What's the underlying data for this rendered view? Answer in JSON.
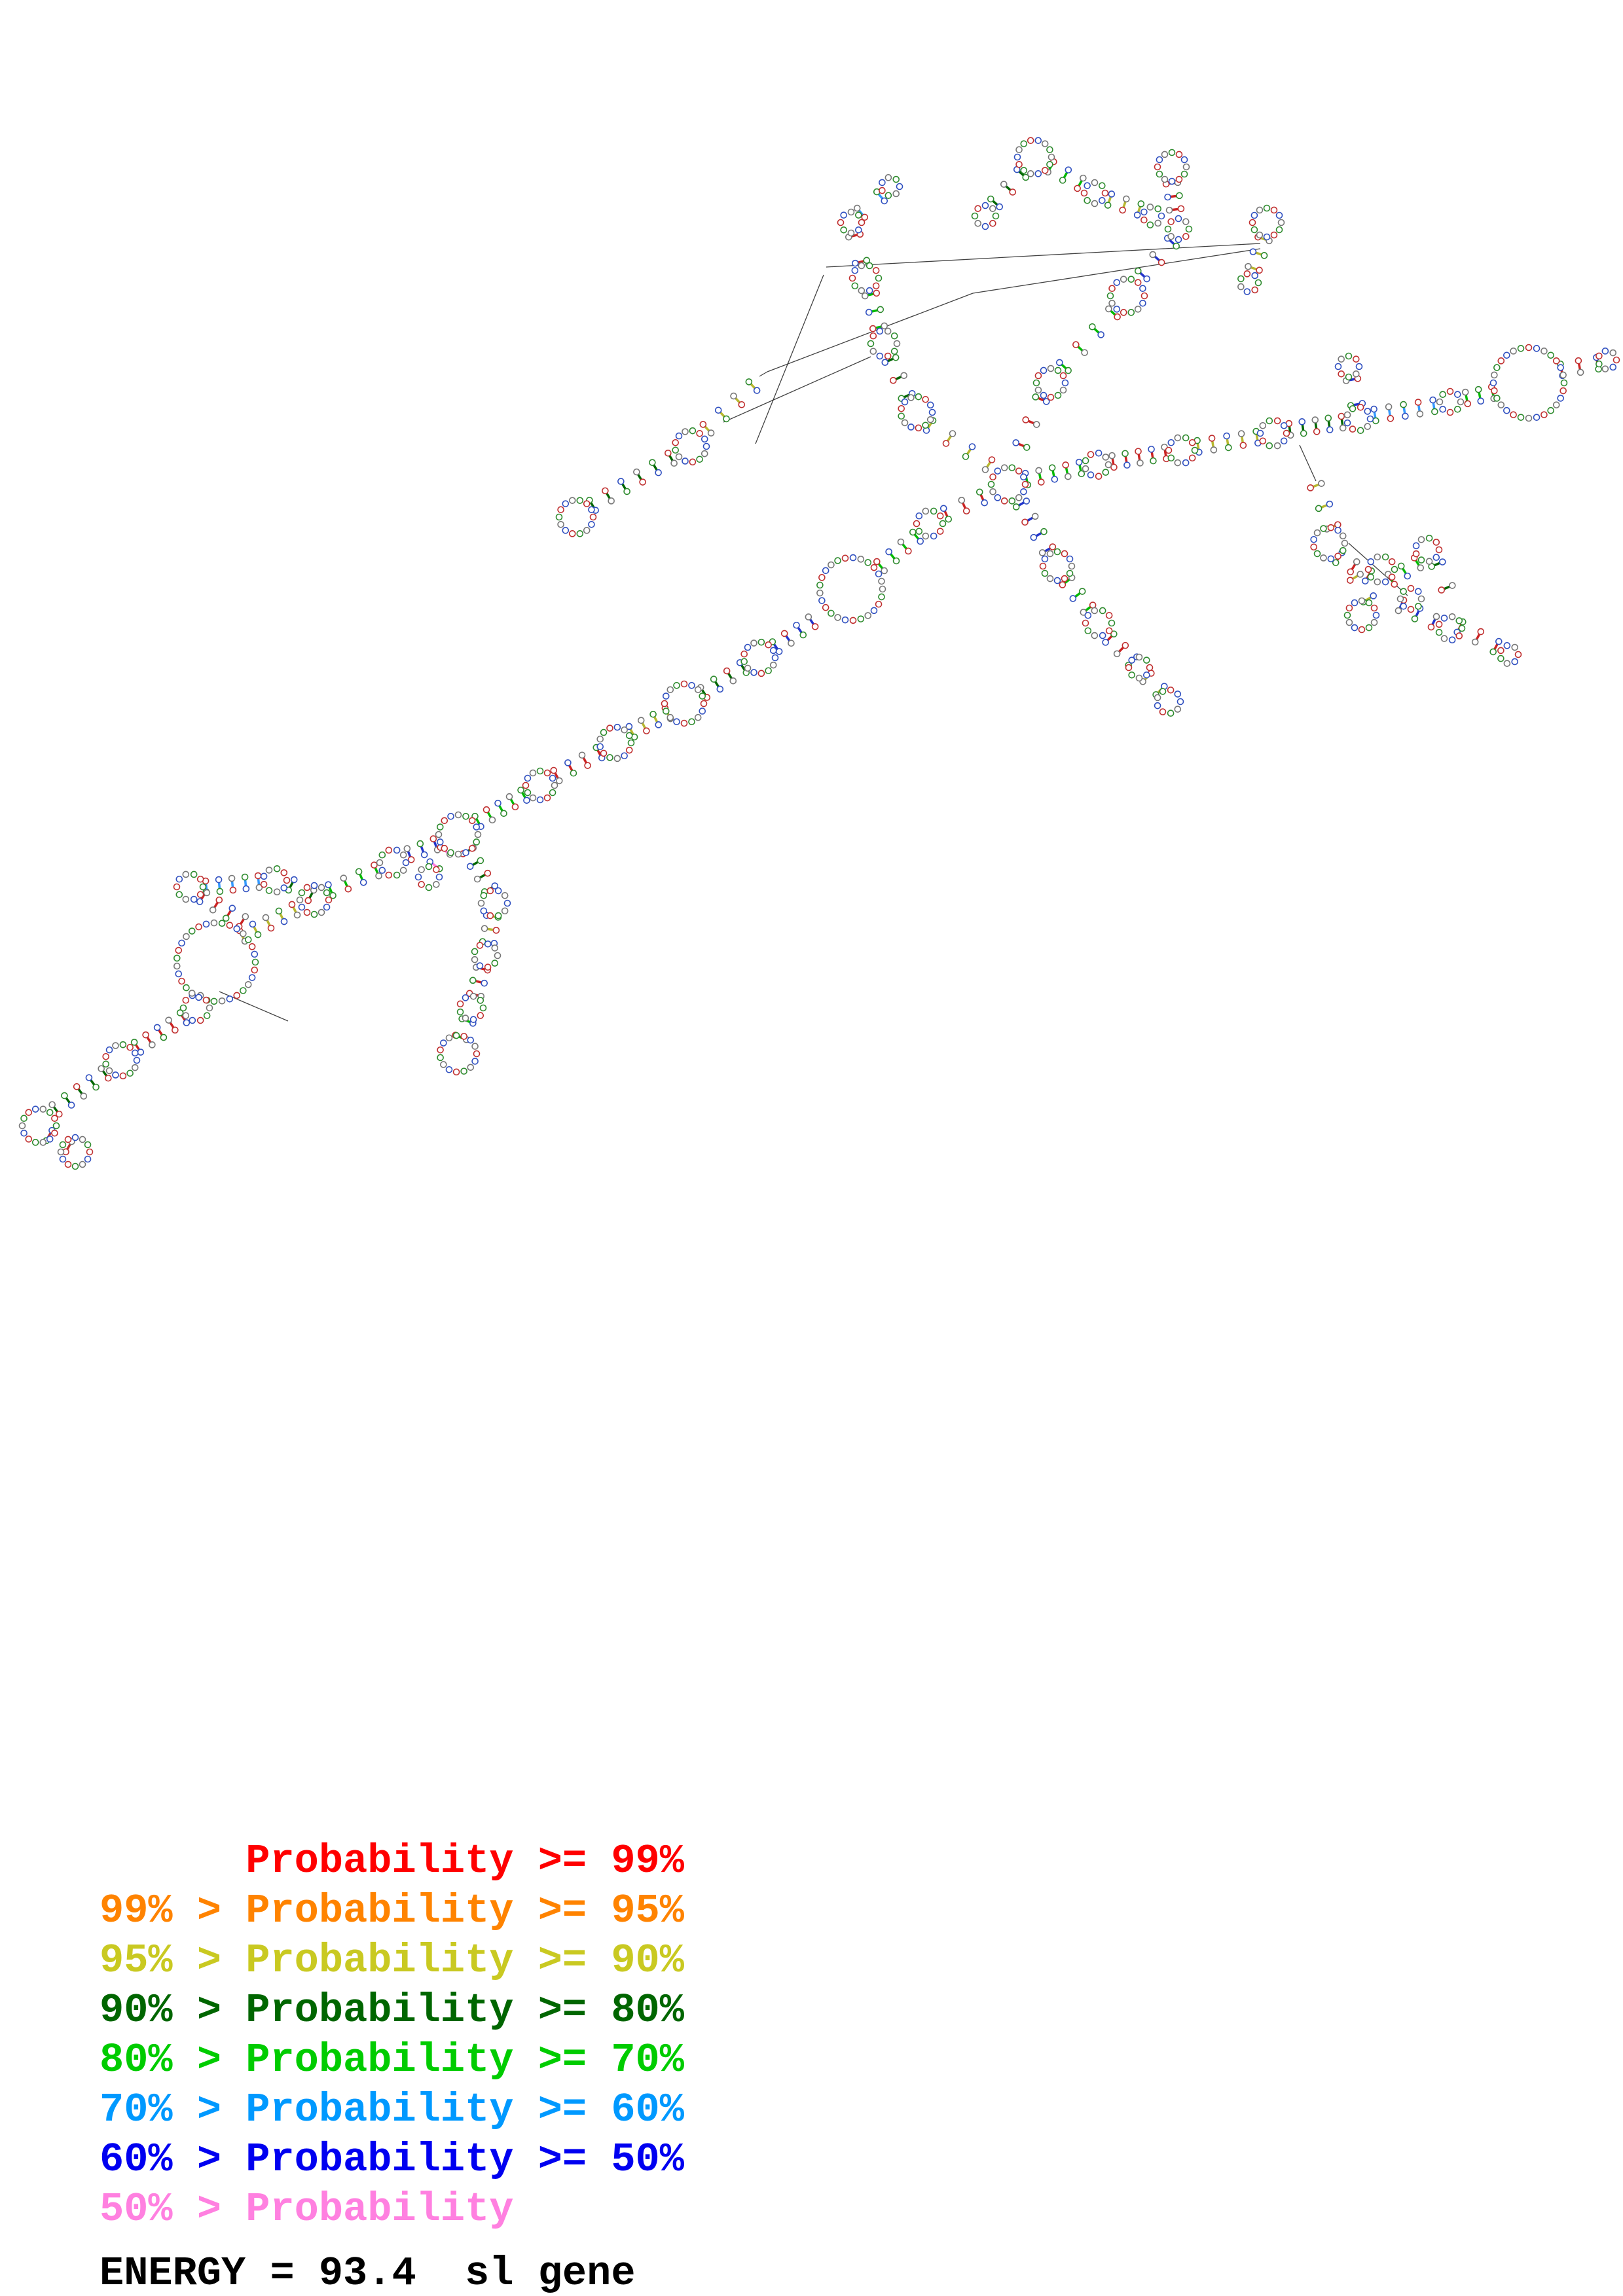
{
  "legend": {
    "items": [
      {
        "text": "      Probability >= 99%",
        "color": "#ff0000"
      },
      {
        "text": "99% > Probability >= 95%",
        "color": "#ff8300"
      },
      {
        "text": "95% > Probability >= 90%",
        "color": "#c9c921"
      },
      {
        "text": "90% > Probability >= 80%",
        "color": "#006600"
      },
      {
        "text": "80% > Probability >= 70%",
        "color": "#00cc00"
      },
      {
        "text": "70% > Probability >= 60%",
        "color": "#0099ff"
      },
      {
        "text": "60% > Probability >= 50%",
        "color": "#0000f0"
      },
      {
        "text": "50% > Probability",
        "color": "#ff80e0"
      }
    ]
  },
  "energy": {
    "text": "ENERGY = 93.4  sl gene"
  },
  "structure": {
    "background": "#ffffff",
    "base_palette": [
      "#2e8b2e",
      "#c03030",
      "#3050c0",
      "#777777"
    ],
    "helices": [
      [
        75,
        1735,
        105,
        1752,
        2,
        "#c03030"
      ],
      [
        85,
        1695,
        160,
        1640,
        5,
        "#006600"
      ],
      [
        210,
        1600,
        280,
        1555,
        5,
        "#cc2222"
      ],
      [
        370,
        1430,
        450,
        1390,
        5,
        "#b8b830"
      ],
      [
        505,
        1360,
        575,
        1330,
        4,
        "#00bb00"
      ],
      [
        625,
        1305,
        665,
        1290,
        3,
        "#2233cc"
      ],
      [
        310,
        1370,
        370,
        1408,
        4,
        "#cc2222"
      ],
      [
        315,
        1355,
        395,
        1347,
        5,
        "#3399ff"
      ],
      [
        445,
        1352,
        475,
        1368,
        2,
        "#006600"
      ],
      [
        715,
        1300,
        748,
        1358,
        4,
        "#006600"
      ],
      [
        752,
        1400,
        746,
        1440,
        3,
        "#b8b830"
      ],
      [
        736,
        1480,
        726,
        1520,
        3,
        "#cc2222"
      ],
      [
        714,
        1560,
        704,
        1585,
        2,
        "#00bb00"
      ],
      [
        680,
        1300,
        664,
        1322,
        2,
        "#ff80e0"
      ],
      [
        730,
        1255,
        800,
        1215,
        5,
        "#00bb00"
      ],
      [
        850,
        1185,
        915,
        1150,
        4,
        "#cc2222"
      ],
      [
        965,
        1118,
        1020,
        1090,
        4,
        "#b8b830"
      ],
      [
        1075,
        1058,
        1135,
        1020,
        4,
        "#006600"
      ],
      [
        1185,
        988,
        1240,
        950,
        4,
        "#2233cc"
      ],
      [
        1345,
        865,
        1400,
        820,
        4,
        "#00bb00"
      ],
      [
        1445,
        785,
        1500,
        760,
        3,
        "#cc2222"
      ],
      [
        1510,
        710,
        1420,
        650,
        4,
        "#b8b830"
      ],
      [
        1385,
        605,
        1360,
        550,
        3,
        "#006600"
      ],
      [
        1342,
        500,
        1330,
        450,
        3,
        "#00bb00"
      ],
      [
        1315,
        400,
        1305,
        360,
        2,
        "#cc2222"
      ],
      [
        1315,
        325,
        1345,
        300,
        2,
        "#3399ff"
      ],
      [
        1560,
        265,
        1520,
        310,
        3,
        "#006600"
      ],
      [
        1605,
        255,
        1650,
        280,
        3,
        "#00bb00"
      ],
      [
        1695,
        305,
        1740,
        320,
        3,
        "#b8b830"
      ],
      [
        1790,
        280,
        1795,
        320,
        3,
        "#cc2222"
      ],
      [
        1790,
        370,
        1745,
        420,
        3,
        "#2233cc"
      ],
      [
        1700,
        478,
        1625,
        560,
        4,
        "#00bb00"
      ],
      [
        1590,
        610,
        1560,
        680,
        3,
        "#cc2222"
      ],
      [
        1930,
        365,
        1915,
        410,
        3,
        "#b8b830"
      ],
      [
        905,
        772,
        1025,
        700,
        6,
        "#006600"
      ],
      [
        1080,
        655,
        1150,
        590,
        4,
        "#b8b830"
      ],
      [
        1560,
        770,
        1600,
        840,
        4,
        "#2233cc"
      ],
      [
        1630,
        888,
        1662,
        930,
        3,
        "#00bb00"
      ],
      [
        1695,
        975,
        1730,
        1010,
        3,
        "#cc2222"
      ],
      [
        1752,
        1035,
        1772,
        1055,
        2,
        "#b8b830"
      ],
      [
        1568,
        732,
        1650,
        715,
        5,
        "#00bb00"
      ],
      [
        1700,
        705,
        1780,
        692,
        5,
        "#cc2222"
      ],
      [
        1830,
        682,
        1920,
        668,
        5,
        "#b8b830"
      ],
      [
        1970,
        656,
        2050,
        645,
        5,
        "#006600"
      ],
      [
        2100,
        634,
        2190,
        620,
        5,
        "#3399ff"
      ],
      [
        2240,
        608,
        2280,
        600,
        3,
        "#00bb00"
      ],
      [
        2385,
        565,
        2440,
        555,
        3,
        "#cc2222"
      ],
      [
        2065,
        580,
        2072,
        618,
        2,
        "#2233cc"
      ],
      [
        2045,
        852,
        2090,
        880,
        3,
        "#cc2222"
      ],
      [
        2125,
        885,
        2165,
        860,
        3,
        "#00bb00"
      ],
      [
        2090,
        915,
        2070,
        882,
        2,
        "#b8b830"
      ],
      [
        2140,
        925,
        2190,
        950,
        3,
        "#2233cc"
      ],
      [
        2195,
        862,
        2210,
        898,
        2,
        "#006600"
      ],
      [
        2035,
        805,
        2010,
        742,
        3,
        "#b8b830"
      ],
      [
        2230,
        958,
        2285,
        988,
        3,
        "#cc2222"
      ]
    ],
    "loops": [
      [
        60,
        1720,
        26
      ],
      [
        115,
        1760,
        22
      ],
      [
        185,
        1620,
        24
      ],
      [
        300,
        1540,
        20
      ],
      [
        330,
        1470,
        60
      ],
      [
        480,
        1375,
        22
      ],
      [
        600,
        1318,
        20
      ],
      [
        700,
        1275,
        30
      ],
      [
        290,
        1355,
        20
      ],
      [
        420,
        1345,
        18
      ],
      [
        755,
        1380,
        20
      ],
      [
        742,
        1460,
        18
      ],
      [
        720,
        1540,
        18
      ],
      [
        700,
        1610,
        28
      ],
      [
        655,
        1340,
        16
      ],
      [
        825,
        1200,
        22
      ],
      [
        940,
        1135,
        24
      ],
      [
        1045,
        1075,
        30
      ],
      [
        1160,
        1005,
        24
      ],
      [
        1300,
        900,
        48
      ],
      [
        1420,
        800,
        20
      ],
      [
        1540,
        740,
        26
      ],
      [
        1400,
        630,
        24
      ],
      [
        1350,
        525,
        20
      ],
      [
        1322,
        425,
        20
      ],
      [
        1300,
        340,
        16
      ],
      [
        1360,
        285,
        14
      ],
      [
        1580,
        240,
        26
      ],
      [
        1505,
        330,
        16
      ],
      [
        1672,
        295,
        16
      ],
      [
        1760,
        330,
        14
      ],
      [
        1790,
        255,
        22
      ],
      [
        1800,
        350,
        16
      ],
      [
        1722,
        452,
        26
      ],
      [
        1605,
        585,
        22
      ],
      [
        1935,
        340,
        22
      ],
      [
        1908,
        432,
        14
      ],
      [
        880,
        790,
        26
      ],
      [
        1055,
        682,
        24
      ],
      [
        1615,
        865,
        22
      ],
      [
        1678,
        952,
        20
      ],
      [
        1740,
        1020,
        16
      ],
      [
        1785,
        1072,
        18
      ],
      [
        1675,
        710,
        18
      ],
      [
        1805,
        688,
        20
      ],
      [
        1945,
        662,
        20
      ],
      [
        2075,
        640,
        18
      ],
      [
        2215,
        614,
        16
      ],
      [
        2335,
        585,
        54
      ],
      [
        2455,
        550,
        14
      ],
      [
        2060,
        560,
        16
      ],
      [
        2030,
        830,
        24
      ],
      [
        2110,
        870,
        20
      ],
      [
        2180,
        840,
        18
      ],
      [
        2080,
        940,
        22
      ],
      [
        2155,
        915,
        16
      ],
      [
        2215,
        960,
        18
      ],
      [
        2305,
        1000,
        14
      ]
    ],
    "links": [
      [
        1262,
        408,
        1925,
        372
      ],
      [
        1172,
        568,
        1486,
        448
      ],
      [
        1486,
        448,
        1925,
        380
      ],
      [
        1154,
        678,
        1258,
        420
      ],
      [
        1105,
        645,
        1330,
        545
      ],
      [
        1160,
        575,
        1172,
        568
      ],
      [
        2010,
        735,
        1985,
        680
      ],
      [
        2060,
        830,
        2150,
        910
      ],
      [
        335,
        1515,
        440,
        1560
      ]
    ]
  }
}
